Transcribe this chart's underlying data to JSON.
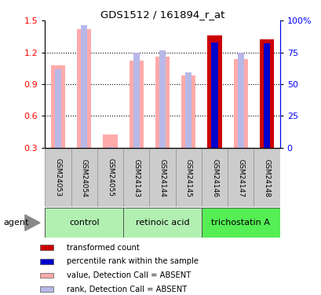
{
  "title": "GDS1512 / 161894_r_at",
  "samples": [
    "GSM24053",
    "GSM24054",
    "GSM24055",
    "GSM24143",
    "GSM24144",
    "GSM24145",
    "GSM24146",
    "GSM24147",
    "GSM24148"
  ],
  "group_info": [
    {
      "label": "control",
      "start": 0,
      "end": 2,
      "color": "#b2f0b2"
    },
    {
      "label": "retinoic acid",
      "start": 3,
      "end": 5,
      "color": "#b2f0b2"
    },
    {
      "label": "trichostatin A",
      "start": 6,
      "end": 8,
      "color": "#55ee55"
    }
  ],
  "transformed_count": [
    null,
    null,
    null,
    null,
    null,
    null,
    1.36,
    null,
    1.32
  ],
  "percentile_rank_val": [
    null,
    null,
    null,
    null,
    null,
    null,
    1.295,
    null,
    1.285
  ],
  "value_absent": [
    1.08,
    1.42,
    0.42,
    1.12,
    1.16,
    0.98,
    null,
    1.14,
    null
  ],
  "rank_absent": [
    1.04,
    1.46,
    0.305,
    1.2,
    1.22,
    1.01,
    null,
    1.2,
    1.31
  ],
  "ylim_left": [
    0.3,
    1.5
  ],
  "ylim_right": [
    0,
    100
  ],
  "yticks_left": [
    0.3,
    0.6,
    0.9,
    1.2,
    1.5
  ],
  "yticks_right": [
    0,
    25,
    50,
    75,
    100
  ],
  "color_transformed": "#cc0000",
  "color_percentile": "#0000cc",
  "color_value_absent": "#ffaaaa",
  "color_rank_absent": "#b8b8e8",
  "sample_bg": "#cccccc",
  "sample_border": "#999999"
}
